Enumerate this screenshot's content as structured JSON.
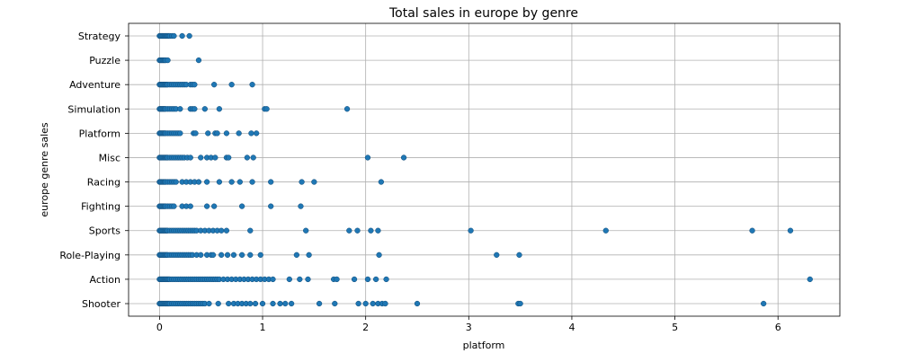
{
  "chart_data": {
    "type": "scatter",
    "title": "Total sales in europe by genre",
    "xlabel": "platform",
    "ylabel": "europe genre sales",
    "xlim": [
      -0.3,
      6.6
    ],
    "xticks": [
      0,
      1,
      2,
      3,
      4,
      5,
      6
    ],
    "grid": true,
    "categories": [
      "Shooter",
      "Action",
      "Role-Playing",
      "Sports",
      "Fighting",
      "Racing",
      "Misc",
      "Platform",
      "Simulation",
      "Adventure",
      "Puzzle",
      "Strategy"
    ],
    "point_color": "#1f77b4",
    "points": [
      {
        "category": "Strategy",
        "x": [
          0,
          0.01,
          0.02,
          0.03,
          0.04,
          0.05,
          0.06,
          0.07,
          0.08,
          0.09,
          0.1,
          0.12,
          0.14,
          0.22,
          0.29
        ]
      },
      {
        "category": "Puzzle",
        "x": [
          0,
          0.01,
          0.02,
          0.03,
          0.04,
          0.05,
          0.06,
          0.08,
          0.38
        ]
      },
      {
        "category": "Adventure",
        "x": [
          0,
          0.01,
          0.02,
          0.03,
          0.04,
          0.05,
          0.06,
          0.07,
          0.08,
          0.1,
          0.12,
          0.14,
          0.16,
          0.18,
          0.2,
          0.22,
          0.24,
          0.26,
          0.3,
          0.32,
          0.34,
          0.53,
          0.7,
          0.9
        ]
      },
      {
        "category": "Simulation",
        "x": [
          0,
          0.01,
          0.02,
          0.03,
          0.04,
          0.05,
          0.06,
          0.08,
          0.1,
          0.12,
          0.14,
          0.16,
          0.2,
          0.3,
          0.32,
          0.34,
          0.44,
          0.58,
          1.02,
          1.04,
          1.82
        ]
      },
      {
        "category": "Platform",
        "x": [
          0,
          0.01,
          0.02,
          0.03,
          0.04,
          0.05,
          0.06,
          0.08,
          0.1,
          0.12,
          0.14,
          0.16,
          0.18,
          0.2,
          0.33,
          0.35,
          0.47,
          0.54,
          0.56,
          0.65,
          0.77,
          0.89,
          0.94
        ]
      },
      {
        "category": "Misc",
        "x": [
          0,
          0.01,
          0.02,
          0.03,
          0.04,
          0.05,
          0.06,
          0.07,
          0.08,
          0.1,
          0.12,
          0.14,
          0.16,
          0.18,
          0.2,
          0.22,
          0.24,
          0.27,
          0.3,
          0.4,
          0.46,
          0.5,
          0.54,
          0.65,
          0.67,
          0.85,
          0.91,
          2.02,
          2.37
        ]
      },
      {
        "category": "Racing",
        "x": [
          0,
          0.01,
          0.02,
          0.03,
          0.04,
          0.05,
          0.06,
          0.08,
          0.1,
          0.12,
          0.14,
          0.16,
          0.22,
          0.26,
          0.3,
          0.34,
          0.38,
          0.46,
          0.58,
          0.7,
          0.78,
          0.9,
          1.08,
          1.38,
          1.5,
          2.15
        ]
      },
      {
        "category": "Fighting",
        "x": [
          0,
          0.01,
          0.02,
          0.03,
          0.04,
          0.05,
          0.06,
          0.08,
          0.1,
          0.12,
          0.14,
          0.22,
          0.26,
          0.3,
          0.46,
          0.53,
          0.8,
          1.08,
          1.37
        ]
      },
      {
        "category": "Sports",
        "x": [
          0,
          0.01,
          0.02,
          0.03,
          0.04,
          0.05,
          0.06,
          0.07,
          0.08,
          0.1,
          0.12,
          0.14,
          0.16,
          0.18,
          0.2,
          0.22,
          0.24,
          0.26,
          0.28,
          0.3,
          0.32,
          0.34,
          0.36,
          0.4,
          0.44,
          0.48,
          0.52,
          0.56,
          0.6,
          0.65,
          0.88,
          1.42,
          1.84,
          1.92,
          2.05,
          2.12,
          3.02,
          4.33,
          5.75,
          6.12
        ]
      },
      {
        "category": "Role-Playing",
        "x": [
          0,
          0.01,
          0.02,
          0.03,
          0.04,
          0.05,
          0.06,
          0.07,
          0.08,
          0.1,
          0.12,
          0.14,
          0.16,
          0.18,
          0.2,
          0.22,
          0.24,
          0.26,
          0.28,
          0.3,
          0.32,
          0.36,
          0.4,
          0.46,
          0.5,
          0.52,
          0.6,
          0.66,
          0.72,
          0.8,
          0.88,
          0.98,
          1.33,
          1.45,
          2.13,
          3.27,
          3.49
        ]
      },
      {
        "category": "Action",
        "x": [
          0,
          0.01,
          0.02,
          0.03,
          0.04,
          0.05,
          0.06,
          0.07,
          0.08,
          0.09,
          0.1,
          0.12,
          0.14,
          0.16,
          0.18,
          0.2,
          0.22,
          0.24,
          0.26,
          0.28,
          0.3,
          0.32,
          0.34,
          0.36,
          0.38,
          0.4,
          0.42,
          0.44,
          0.46,
          0.48,
          0.5,
          0.52,
          0.54,
          0.56,
          0.58,
          0.62,
          0.66,
          0.7,
          0.74,
          0.78,
          0.82,
          0.86,
          0.9,
          0.94,
          0.98,
          1.02,
          1.06,
          1.1,
          1.26,
          1.36,
          1.44,
          1.69,
          1.72,
          1.89,
          2.02,
          2.1,
          2.2,
          6.31
        ]
      },
      {
        "category": "Shooter",
        "x": [
          0,
          0.01,
          0.02,
          0.03,
          0.04,
          0.05,
          0.06,
          0.07,
          0.08,
          0.09,
          0.1,
          0.12,
          0.14,
          0.16,
          0.18,
          0.2,
          0.22,
          0.24,
          0.26,
          0.28,
          0.3,
          0.32,
          0.34,
          0.36,
          0.38,
          0.4,
          0.42,
          0.44,
          0.48,
          0.57,
          0.67,
          0.72,
          0.76,
          0.8,
          0.84,
          0.88,
          0.93,
          1.0,
          1.1,
          1.17,
          1.22,
          1.28,
          1.55,
          1.7,
          1.93,
          2.0,
          2.07,
          2.12,
          2.16,
          2.19,
          2.5,
          3.48,
          3.5,
          5.86
        ]
      }
    ]
  }
}
